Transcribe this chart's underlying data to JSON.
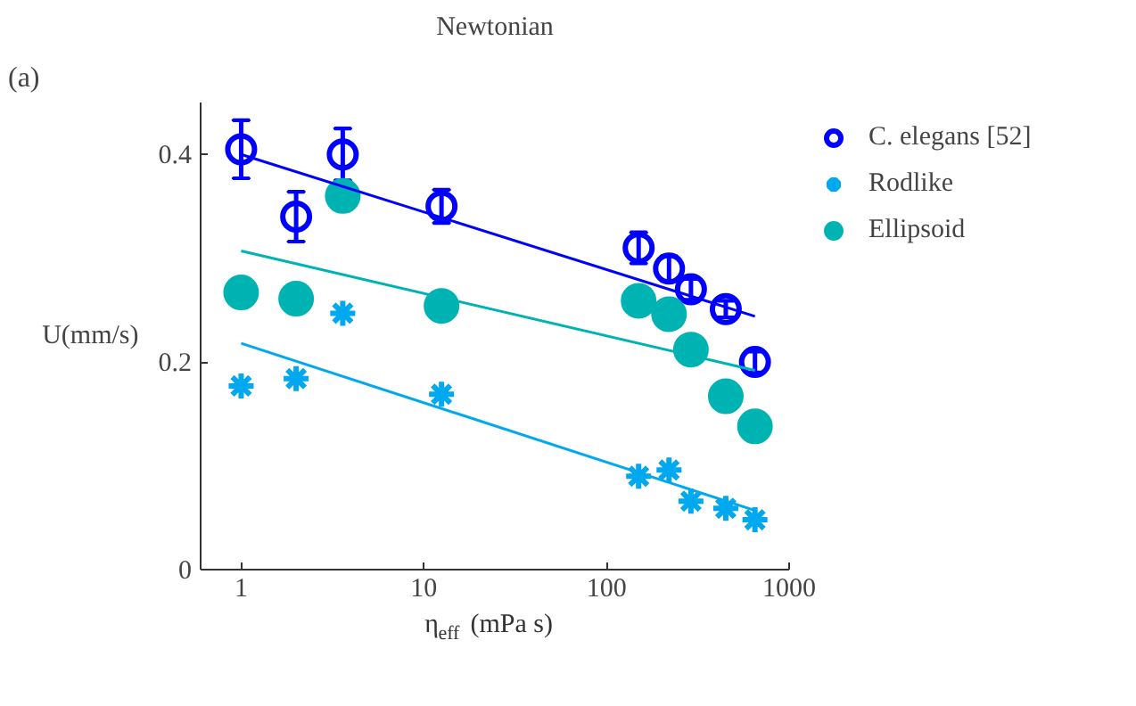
{
  "chart_data": {
    "type": "scatter",
    "title": "Newtonian",
    "xlabel": "η$_{eff}$(mPa s)",
    "ylabel": "U(mm/s)",
    "annotations": [
      "(a)"
    ],
    "log": "x",
    "xlim": [
      0.6,
      1000
    ],
    "xticks": [
      1,
      10,
      100,
      1000
    ],
    "ylim": [
      0,
      0.45
    ],
    "yticks": [
      0,
      0.2,
      0.4
    ],
    "grid": false,
    "legend": "top right",
    "series": [
      {
        "name": "C. elegans [52]",
        "marker": "open circle",
        "color": "#0000ff",
        "x": [
          1,
          2,
          3.6,
          12.5,
          150,
          220,
          290,
          450,
          650
        ],
        "values": [
          0.405,
          0.34,
          0.4,
          0.35,
          0.31,
          0.29,
          0.27,
          0.251,
          0.2
        ],
        "errors": [
          0.028,
          0.024,
          0.025,
          0.016,
          0.015,
          0.012,
          0.01,
          0.008,
          0.01
        ]
      },
      {
        "name": "Rodlike",
        "marker": "cross",
        "color": "#00a8f0",
        "x": [
          1,
          2,
          3.6,
          12.5,
          150,
          220,
          290,
          450,
          650
        ],
        "values": [
          0.177,
          0.184,
          0.247,
          0.169,
          0.09,
          0.096,
          0.066,
          0.059,
          0.048
        ]
      },
      {
        "name": "Ellipsoid",
        "marker": "circle",
        "color": "#00b3b3",
        "x": [
          1,
          2,
          3.6,
          12.5,
          150,
          220,
          290,
          450,
          650
        ],
        "values": [
          0.267,
          0.261,
          0.36,
          0.254,
          0.259,
          0.246,
          0.212,
          0.167,
          0.138
        ]
      },
      {
        "type": "line",
        "color": "#0000ff",
        "x": [
          1,
          650
        ],
        "values": [
          0.4,
          0.244
        ]
      },
      {
        "type": "line",
        "color": "#00b3b3",
        "x": [
          1,
          650
        ],
        "values": [
          0.307,
          0.192
        ]
      },
      {
        "type": "line",
        "color": "#00a8f0",
        "x": [
          1,
          650
        ],
        "values": [
          0.218,
          0.057
        ]
      }
    ]
  }
}
